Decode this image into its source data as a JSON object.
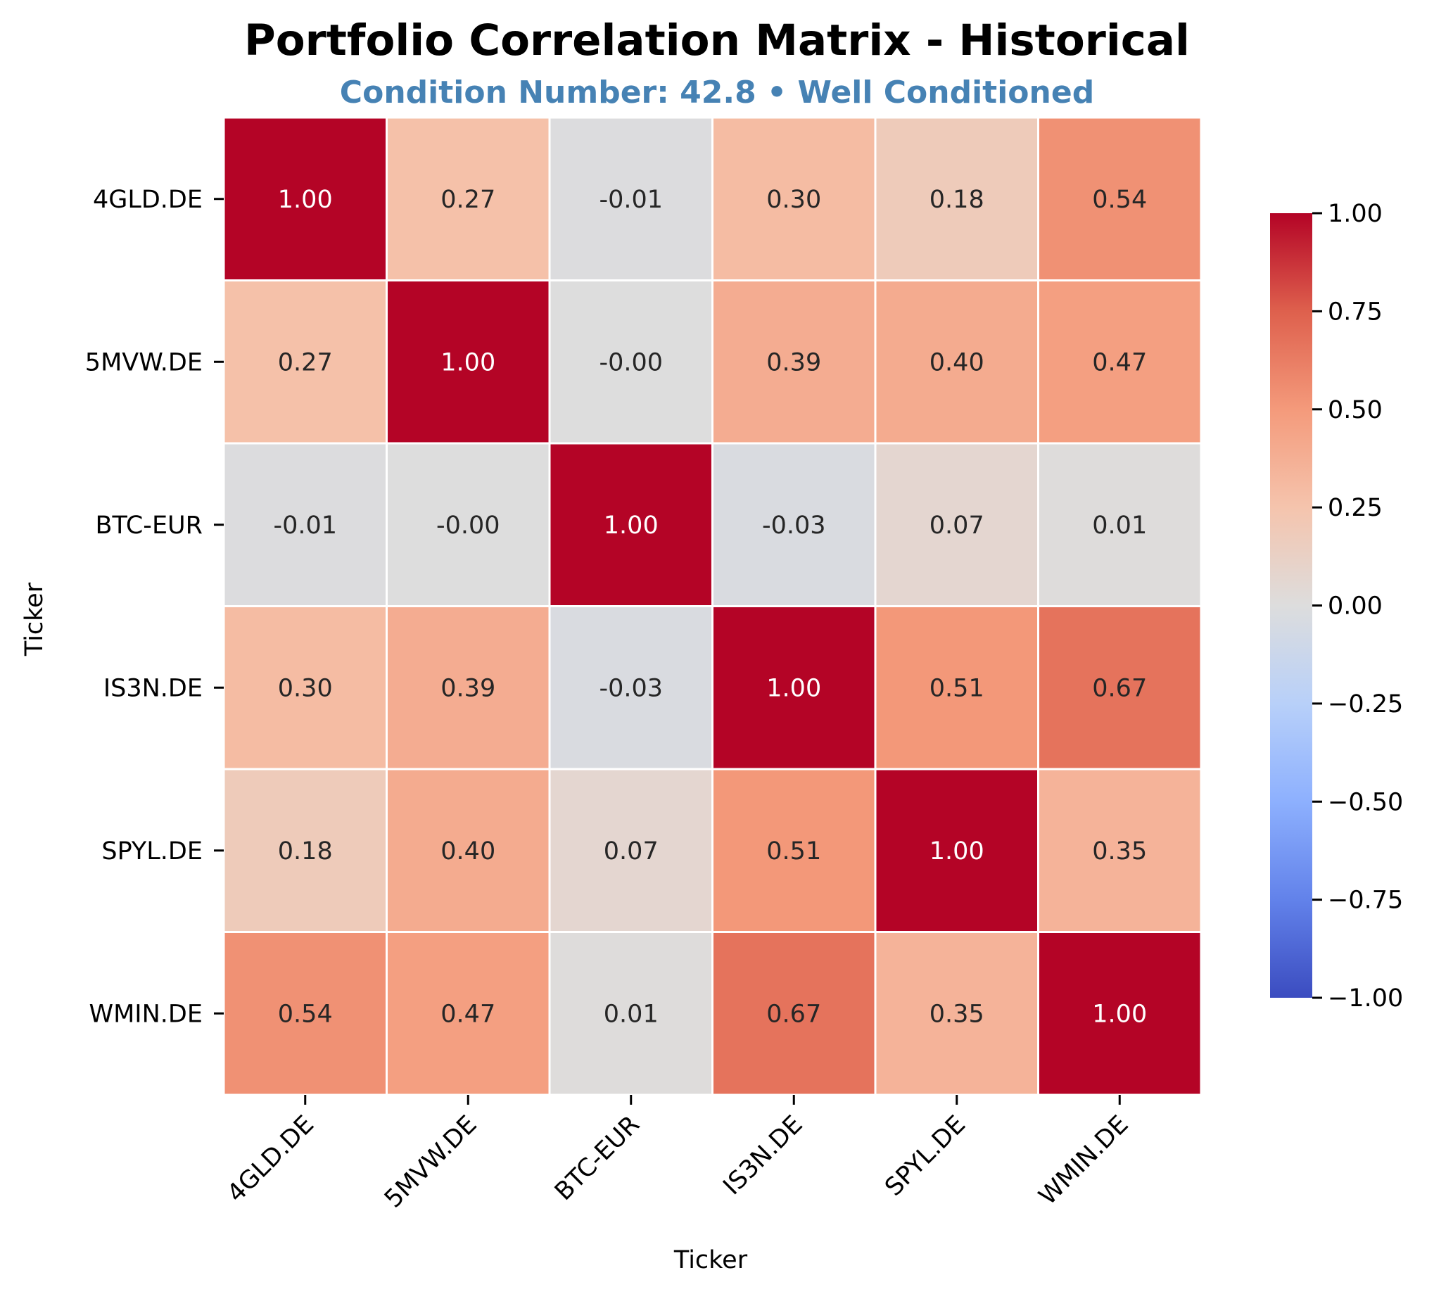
{
  "chart_data": {
    "type": "heatmap",
    "title": "Portfolio Correlation Matrix - Historical",
    "subtitle": "Condition Number: 42.8 • Well Conditioned",
    "xlabel": "Ticker",
    "ylabel": "Ticker",
    "rows": [
      "4GLD.DE",
      "5MVW.DE",
      "BTC-EUR",
      "IS3N.DE",
      "SPYL.DE",
      "WMIN.DE"
    ],
    "columns": [
      "4GLD.DE",
      "5MVW.DE",
      "BTC-EUR",
      "IS3N.DE",
      "SPYL.DE",
      "WMIN.DE"
    ],
    "values": [
      [
        1.0,
        0.27,
        -0.01,
        0.3,
        0.18,
        0.54
      ],
      [
        0.27,
        1.0,
        -0.0,
        0.39,
        0.4,
        0.47
      ],
      [
        -0.01,
        -0.0,
        1.0,
        -0.03,
        0.07,
        0.01
      ],
      [
        0.3,
        0.39,
        -0.03,
        1.0,
        0.51,
        0.67
      ],
      [
        0.18,
        0.4,
        0.07,
        0.51,
        1.0,
        0.35
      ],
      [
        0.54,
        0.47,
        0.01,
        0.67,
        0.35,
        1.0
      ]
    ],
    "cell_labels": [
      [
        "1.00",
        "0.27",
        "-0.01",
        "0.30",
        "0.18",
        "0.54"
      ],
      [
        "0.27",
        "1.00",
        "-0.00",
        "0.39",
        "0.40",
        "0.47"
      ],
      [
        "-0.01",
        "-0.00",
        "1.00",
        "-0.03",
        "0.07",
        "0.01"
      ],
      [
        "0.30",
        "0.39",
        "-0.03",
        "1.00",
        "0.51",
        "0.67"
      ],
      [
        "0.18",
        "0.40",
        "0.07",
        "0.51",
        "1.00",
        "0.35"
      ],
      [
        "0.54",
        "0.47",
        "0.01",
        "0.67",
        "0.35",
        "1.00"
      ]
    ],
    "colorbar": {
      "vmin": -1.0,
      "vmax": 1.0,
      "ticks": [
        1.0,
        0.75,
        0.5,
        0.25,
        0.0,
        -0.25,
        -0.5,
        -0.75,
        -1.0
      ],
      "tick_labels": [
        "1.00",
        "0.75",
        "0.50",
        "0.25",
        "0.00",
        "−0.25",
        "−0.50",
        "−0.75",
        "−1.00"
      ],
      "colormap": "coolwarm"
    },
    "colors": {
      "subtitle": "#4682B4",
      "cell_border": "#ffffff",
      "dark_text": "#262626",
      "light_text": "#ffffff"
    }
  }
}
